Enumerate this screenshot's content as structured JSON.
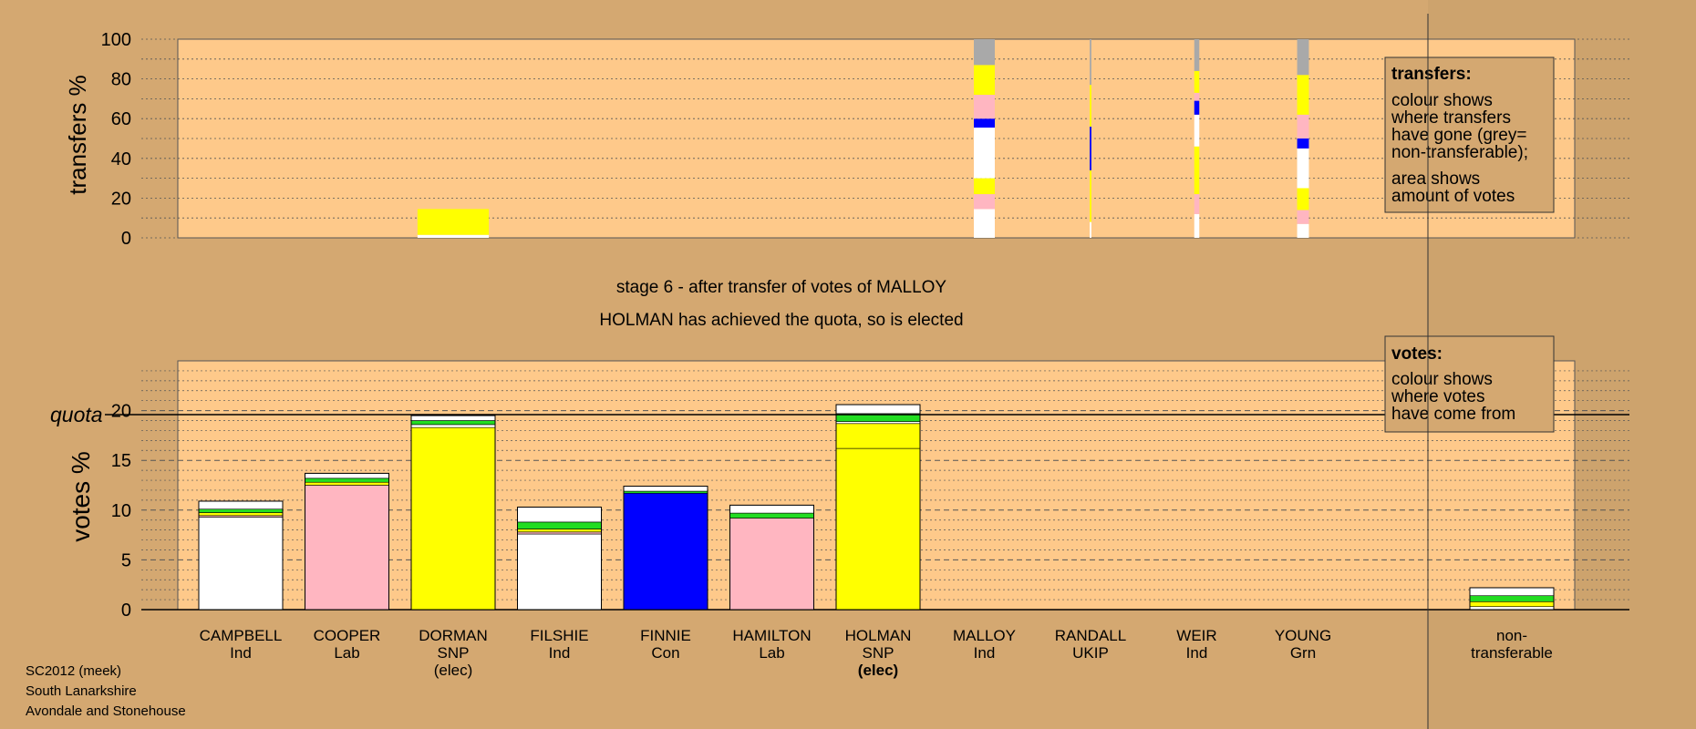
{
  "colors": {
    "page_background": "#d4a871",
    "plot_background": "#fec98a",
    "Ind": "#ffffff",
    "Lab": "#ffb6c1",
    "SNP": "#ffff00",
    "Con": "#0000ff",
    "UKIP": "#800080",
    "Grn": "#22dd22",
    "non_transferable": "#a9a9a9"
  },
  "footer": {
    "line1": "SC2012 (meek)",
    "line2": "South Lanarkshire",
    "line3": "Avondale and Stonehouse"
  },
  "stage": {
    "title": "stage 6 - after transfer of votes of MALLOY",
    "subtitle": "HOLMAN has achieved the quota, so is elected"
  },
  "legend_transfers": {
    "title": "transfers:",
    "lines": [
      "colour shows",
      "where transfers",
      "have gone (grey=",
      "non-transferable);"
    ],
    "lines2": [
      "area shows",
      "amount of votes"
    ]
  },
  "legend_votes": {
    "title": "votes:",
    "lines": [
      "colour shows",
      "where votes",
      "have come from"
    ]
  },
  "chart_data": [
    {
      "type": "bar",
      "name": "transfers",
      "ylabel": "transfers %",
      "ylim": [
        0,
        100
      ],
      "yticks": [
        0,
        20,
        40,
        60,
        80,
        100
      ],
      "transfers": [
        {
          "candidate": "DORMAN",
          "width_fraction": 0.85,
          "segments": [
            {
              "party": "Ind",
              "from": 0,
              "to": 1.5
            },
            {
              "party": "SNP",
              "from": 1.5,
              "to": 14.5
            }
          ]
        },
        {
          "candidate": "MALLOY",
          "width_fraction": 0.25,
          "segments": [
            {
              "party": "Ind",
              "from": 0,
              "to": 14.5
            },
            {
              "party": "Lab",
              "from": 14.5,
              "to": 22
            },
            {
              "party": "SNP",
              "from": 22,
              "to": 30
            },
            {
              "party": "Ind",
              "from": 30,
              "to": 55.5
            },
            {
              "party": "Con",
              "from": 55.5,
              "to": 60
            },
            {
              "party": "Lab",
              "from": 60,
              "to": 72
            },
            {
              "party": "SNP",
              "from": 72,
              "to": 87
            },
            {
              "party": "non_transferable",
              "from": 87,
              "to": 100
            }
          ]
        },
        {
          "candidate": "RANDALL",
          "width_fraction": 0.02,
          "segments": [
            {
              "party": "Ind",
              "from": 0,
              "to": 8
            },
            {
              "party": "SNP",
              "from": 8,
              "to": 34
            },
            {
              "party": "Con",
              "from": 34,
              "to": 56
            },
            {
              "party": "SNP",
              "from": 56,
              "to": 77
            },
            {
              "party": "non_transferable",
              "from": 77,
              "to": 100
            }
          ]
        },
        {
          "candidate": "WEIR",
          "width_fraction": 0.06,
          "segments": [
            {
              "party": "Ind",
              "from": 0,
              "to": 12
            },
            {
              "party": "Lab",
              "from": 12,
              "to": 22
            },
            {
              "party": "SNP",
              "from": 22,
              "to": 46
            },
            {
              "party": "Ind",
              "from": 46,
              "to": 62
            },
            {
              "party": "Con",
              "from": 62,
              "to": 69
            },
            {
              "party": "Lab",
              "from": 69,
              "to": 73
            },
            {
              "party": "SNP",
              "from": 73,
              "to": 84
            },
            {
              "party": "non_transferable",
              "from": 84,
              "to": 100
            }
          ]
        },
        {
          "candidate": "YOUNG",
          "width_fraction": 0.14,
          "segments": [
            {
              "party": "Ind",
              "from": 0,
              "to": 7
            },
            {
              "party": "Lab",
              "from": 7,
              "to": 14
            },
            {
              "party": "SNP",
              "from": 14,
              "to": 25
            },
            {
              "party": "Ind",
              "from": 25,
              "to": 45
            },
            {
              "party": "Con",
              "from": 45,
              "to": 50
            },
            {
              "party": "Lab",
              "from": 50,
              "to": 62
            },
            {
              "party": "SNP",
              "from": 62,
              "to": 82
            },
            {
              "party": "non_transferable",
              "from": 82,
              "to": 100
            }
          ]
        }
      ]
    },
    {
      "type": "bar",
      "name": "votes",
      "ylabel": "votes %",
      "ylim": [
        0,
        25
      ],
      "yticks": [
        0,
        5,
        10,
        15,
        20
      ],
      "quota": 19.6,
      "quota_label": "quota",
      "categories": [
        {
          "name": "CAMPBELL",
          "party": "Ind",
          "note": ""
        },
        {
          "name": "COOPER",
          "party": "Lab",
          "note": ""
        },
        {
          "name": "DORMAN",
          "party": "SNP",
          "note": "(elec)"
        },
        {
          "name": "FILSHIE",
          "party": "Ind",
          "note": ""
        },
        {
          "name": "FINNIE",
          "party": "Con",
          "note": ""
        },
        {
          "name": "HAMILTON",
          "party": "Lab",
          "note": ""
        },
        {
          "name": "HOLMAN",
          "party": "SNP",
          "note": "(elec)"
        },
        {
          "name": "MALLOY",
          "party": "Ind",
          "note": ""
        },
        {
          "name": "RANDALL",
          "party": "UKIP",
          "note": ""
        },
        {
          "name": "WEIR",
          "party": "Ind",
          "note": ""
        },
        {
          "name": "YOUNG",
          "party": "Grn",
          "note": ""
        }
      ],
      "non_transferable": {
        "label1": "non-",
        "label2": "transferable"
      },
      "stacks": [
        [
          {
            "party": "Ind",
            "value": 9.3
          },
          {
            "party": "Lab",
            "value": 0.15
          },
          {
            "party": "SNP",
            "value": 0.3
          },
          {
            "party": "Grn",
            "value": 0.35
          },
          {
            "party": "Ind",
            "value": 0.8
          }
        ],
        [
          {
            "party": "Lab",
            "value": 12.5
          },
          {
            "party": "SNP",
            "value": 0.3
          },
          {
            "party": "Grn",
            "value": 0.4
          },
          {
            "party": "Ind",
            "value": 0.5
          }
        ],
        [
          {
            "party": "SNP",
            "value": 18.3
          },
          {
            "party": "Ind",
            "value": 0.3
          },
          {
            "party": "Grn",
            "value": 0.4
          },
          {
            "party": "Ind",
            "value": 0.5
          }
        ],
        [
          {
            "party": "Ind",
            "value": 7.6
          },
          {
            "party": "Lab",
            "value": 0.2
          },
          {
            "party": "SNP",
            "value": 0.3
          },
          {
            "party": "Grn",
            "value": 0.7
          },
          {
            "party": "Ind",
            "value": 1.5
          }
        ],
        [
          {
            "party": "Con",
            "value": 11.7
          },
          {
            "party": "Grn",
            "value": 0.2
          },
          {
            "party": "Ind",
            "value": 0.5
          }
        ],
        [
          {
            "party": "Lab",
            "value": 9.2
          },
          {
            "party": "Grn",
            "value": 0.5
          },
          {
            "party": "Ind",
            "value": 0.8
          }
        ],
        [
          {
            "party": "SNP",
            "value": 16.2
          },
          {
            "party": "SNP",
            "value": 2.5
          },
          {
            "party": "Ind",
            "value": 0.2
          },
          {
            "party": "Grn",
            "value": 0.8
          },
          {
            "party": "Ind",
            "value": 0.9
          }
        ],
        [],
        [],
        [],
        []
      ],
      "non_transferable_stack": [
        {
          "party": "Ind",
          "value": 0.3
        },
        {
          "party": "SNP",
          "value": 0.5
        },
        {
          "party": "Grn",
          "value": 0.6
        },
        {
          "party": "Ind",
          "value": 0.8
        }
      ]
    }
  ]
}
